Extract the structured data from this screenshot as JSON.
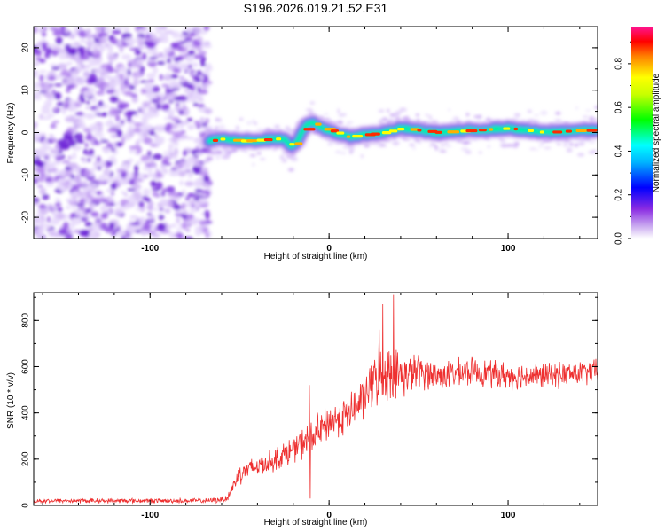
{
  "title": "S196.2026.019.21.52.E31",
  "chart_data": [
    {
      "type": "heatmap",
      "name": "spectrogram",
      "xlabel": "Height of straight line (km)",
      "ylabel": "Frequency (Hz)",
      "xlim": [
        -165,
        150
      ],
      "ylim": [
        -25,
        25
      ],
      "xticks": [
        -100,
        0,
        100
      ],
      "yticks": [
        -20,
        -10,
        0,
        10,
        20
      ],
      "xtick_labels": [
        "-100",
        "0",
        "100"
      ],
      "ytick_labels": [
        "-20",
        "-10",
        "0",
        "10",
        "20"
      ],
      "noise_region_x": [
        -165,
        -67
      ],
      "signal_start_x": -67,
      "ridge": {
        "x": [
          -67,
          -60,
          -50,
          -40,
          -30,
          -24,
          -21,
          -18,
          -14,
          -11,
          -8,
          -5,
          0,
          10,
          20,
          30,
          40,
          60,
          80,
          100,
          120,
          140,
          150
        ],
        "freq": [
          -2,
          -1.5,
          -2,
          -1.8,
          -1.5,
          -1.7,
          -3.5,
          -2,
          1,
          2.5,
          2,
          1,
          0.5,
          -1,
          -0.5,
          0,
          1,
          0,
          0.5,
          1,
          0,
          0.5,
          0.5
        ]
      },
      "colorbar": {
        "label": "Normalized spectral amplitude",
        "range": [
          0,
          0.97
        ],
        "ticks": [
          0.0,
          0.2,
          0.4,
          0.6,
          0.8
        ],
        "tick_labels": [
          "0.0",
          "0.2",
          "0.4",
          "0.6",
          "0.8"
        ],
        "colors": [
          "#ffffff",
          "#8a2be2",
          "#0000ff",
          "#00ffff",
          "#00ff00",
          "#ffff00",
          "#ff8000",
          "#ff0000",
          "#ff1493"
        ]
      }
    },
    {
      "type": "line",
      "name": "snr",
      "xlabel": "Height of straight line (km)",
      "ylabel": "SNR (10 * v/v)",
      "xlim": [
        -165,
        150
      ],
      "ylim": [
        0,
        920
      ],
      "xticks": [
        -100,
        0,
        100
      ],
      "yticks": [
        0,
        200,
        400,
        600,
        800
      ],
      "xtick_labels": [
        "-100",
        "0",
        "100"
      ],
      "ytick_labels": [
        "0",
        "200",
        "400",
        "600",
        "800"
      ],
      "color": "#ee3030",
      "envelope": {
        "x": [
          -165,
          -110,
          -67,
          -57,
          -50,
          -40,
          -30,
          -20,
          -13,
          -10,
          -5,
          0,
          10,
          20,
          25,
          30,
          35,
          40,
          50,
          60,
          80,
          100,
          120,
          140,
          150
        ],
        "mean": [
          20,
          20,
          20,
          30,
          140,
          170,
          200,
          240,
          280,
          290,
          320,
          360,
          390,
          470,
          540,
          570,
          580,
          560,
          580,
          560,
          580,
          560,
          560,
          570,
          580
        ],
        "amp": [
          12,
          12,
          12,
          20,
          55,
          55,
          60,
          70,
          80,
          90,
          100,
          90,
          100,
          110,
          130,
          150,
          140,
          110,
          90,
          75,
          70,
          70,
          65,
          65,
          65
        ]
      },
      "spikes": [
        {
          "x": -11,
          "y": 520
        },
        {
          "x": -10.5,
          "y": 30
        },
        {
          "x": 36,
          "y": 910
        },
        {
          "x": 30,
          "y": 870
        },
        {
          "x": 28,
          "y": 760
        }
      ]
    }
  ]
}
